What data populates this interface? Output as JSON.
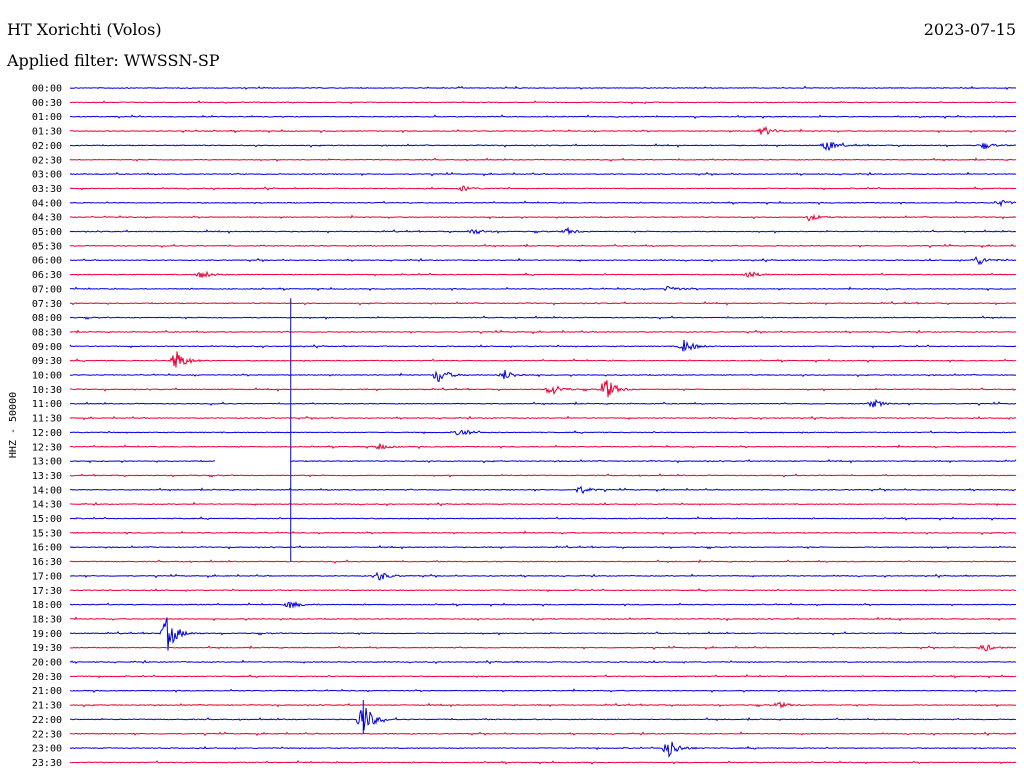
{
  "header": {
    "station_title": "HT Xorichti (Volos)",
    "filter_text": "Applied filter: WWSSN-SP",
    "date": "2023-07-15"
  },
  "colors": {
    "blue": "#0000dd",
    "red": "#ee0033"
  },
  "chart_data": {
    "type": "line",
    "title": "",
    "channel_label": "HHZ - 50000",
    "row_labels": [
      "00:00",
      "00:30",
      "01:00",
      "01:30",
      "02:00",
      "02:30",
      "03:00",
      "03:30",
      "04:00",
      "04:30",
      "05:00",
      "05:30",
      "06:00",
      "06:30",
      "07:00",
      "07:30",
      "08:00",
      "08:30",
      "09:00",
      "09:30",
      "10:00",
      "10:30",
      "11:00",
      "11:30",
      "12:00",
      "12:30",
      "13:00",
      "13:30",
      "14:00",
      "14:30",
      "15:00",
      "15:30",
      "16:00",
      "16:30",
      "17:00",
      "17:30",
      "18:00",
      "18:30",
      "19:00",
      "19:30",
      "20:00",
      "20:30",
      "21:00",
      "21:30",
      "22:00",
      "22:30",
      "23:00",
      "23:30"
    ],
    "trace_colors": [
      "blue",
      "red"
    ],
    "grid": false,
    "events": [
      {
        "row": "01:30",
        "minute": 22.0,
        "amplitude": 5
      },
      {
        "row": "02:00",
        "minute": 24.0,
        "amplitude": 6
      },
      {
        "row": "02:00",
        "minute": 29.0,
        "amplitude": 3
      },
      {
        "row": "03:30",
        "minute": 12.5,
        "amplitude": 3
      },
      {
        "row": "04:00",
        "minute": 29.5,
        "amplitude": 3
      },
      {
        "row": "04:30",
        "minute": 23.5,
        "amplitude": 3
      },
      {
        "row": "05:00",
        "minute": 12.8,
        "amplitude": 3
      },
      {
        "row": "05:00",
        "minute": 15.8,
        "amplitude": 3
      },
      {
        "row": "06:00",
        "minute": 28.8,
        "amplitude": 5
      },
      {
        "row": "06:30",
        "minute": 4.2,
        "amplitude": 4
      },
      {
        "row": "06:30",
        "minute": 21.5,
        "amplitude": 4
      },
      {
        "row": "07:00",
        "minute": 19.0,
        "amplitude": 3
      },
      {
        "row": "09:00",
        "minute": 19.5,
        "amplitude": 7
      },
      {
        "row": "09:30",
        "minute": 3.4,
        "amplitude": 11
      },
      {
        "row": "10:00",
        "minute": 11.7,
        "amplitude": 8
      },
      {
        "row": "10:00",
        "minute": 13.8,
        "amplitude": 5
      },
      {
        "row": "10:30",
        "minute": 15.3,
        "amplitude": 6
      },
      {
        "row": "10:30",
        "minute": 17.0,
        "amplitude": 12
      },
      {
        "row": "11:00",
        "minute": 25.5,
        "amplitude": 4
      },
      {
        "row": "12:00",
        "minute": 12.4,
        "amplitude": 4
      },
      {
        "row": "12:30",
        "minute": 9.8,
        "amplitude": 3
      },
      {
        "row": "14:00",
        "minute": 16.2,
        "amplitude": 4
      },
      {
        "row": "17:00",
        "minute": 9.8,
        "amplitude": 5
      },
      {
        "row": "18:00",
        "minute": 7.0,
        "amplitude": 4
      },
      {
        "row": "19:00",
        "minute": 3.1,
        "amplitude": 18
      },
      {
        "row": "19:30",
        "minute": 29.0,
        "amplitude": 4
      },
      {
        "row": "21:30",
        "minute": 22.5,
        "amplitude": 3
      },
      {
        "row": "22:00",
        "minute": 9.3,
        "amplitude": 18
      },
      {
        "row": "23:00",
        "minute": 19.0,
        "amplitude": 10
      }
    ],
    "gaps": [
      {
        "row": "13:00",
        "from_minute": 4.6,
        "to_minute": 7.0
      }
    ],
    "spikes": [
      {
        "from_row": "07:30",
        "to_row": "16:30",
        "minute": 7.0
      },
      {
        "from_row": "21:30",
        "to_row": "22:30",
        "minute": 9.3
      }
    ]
  }
}
